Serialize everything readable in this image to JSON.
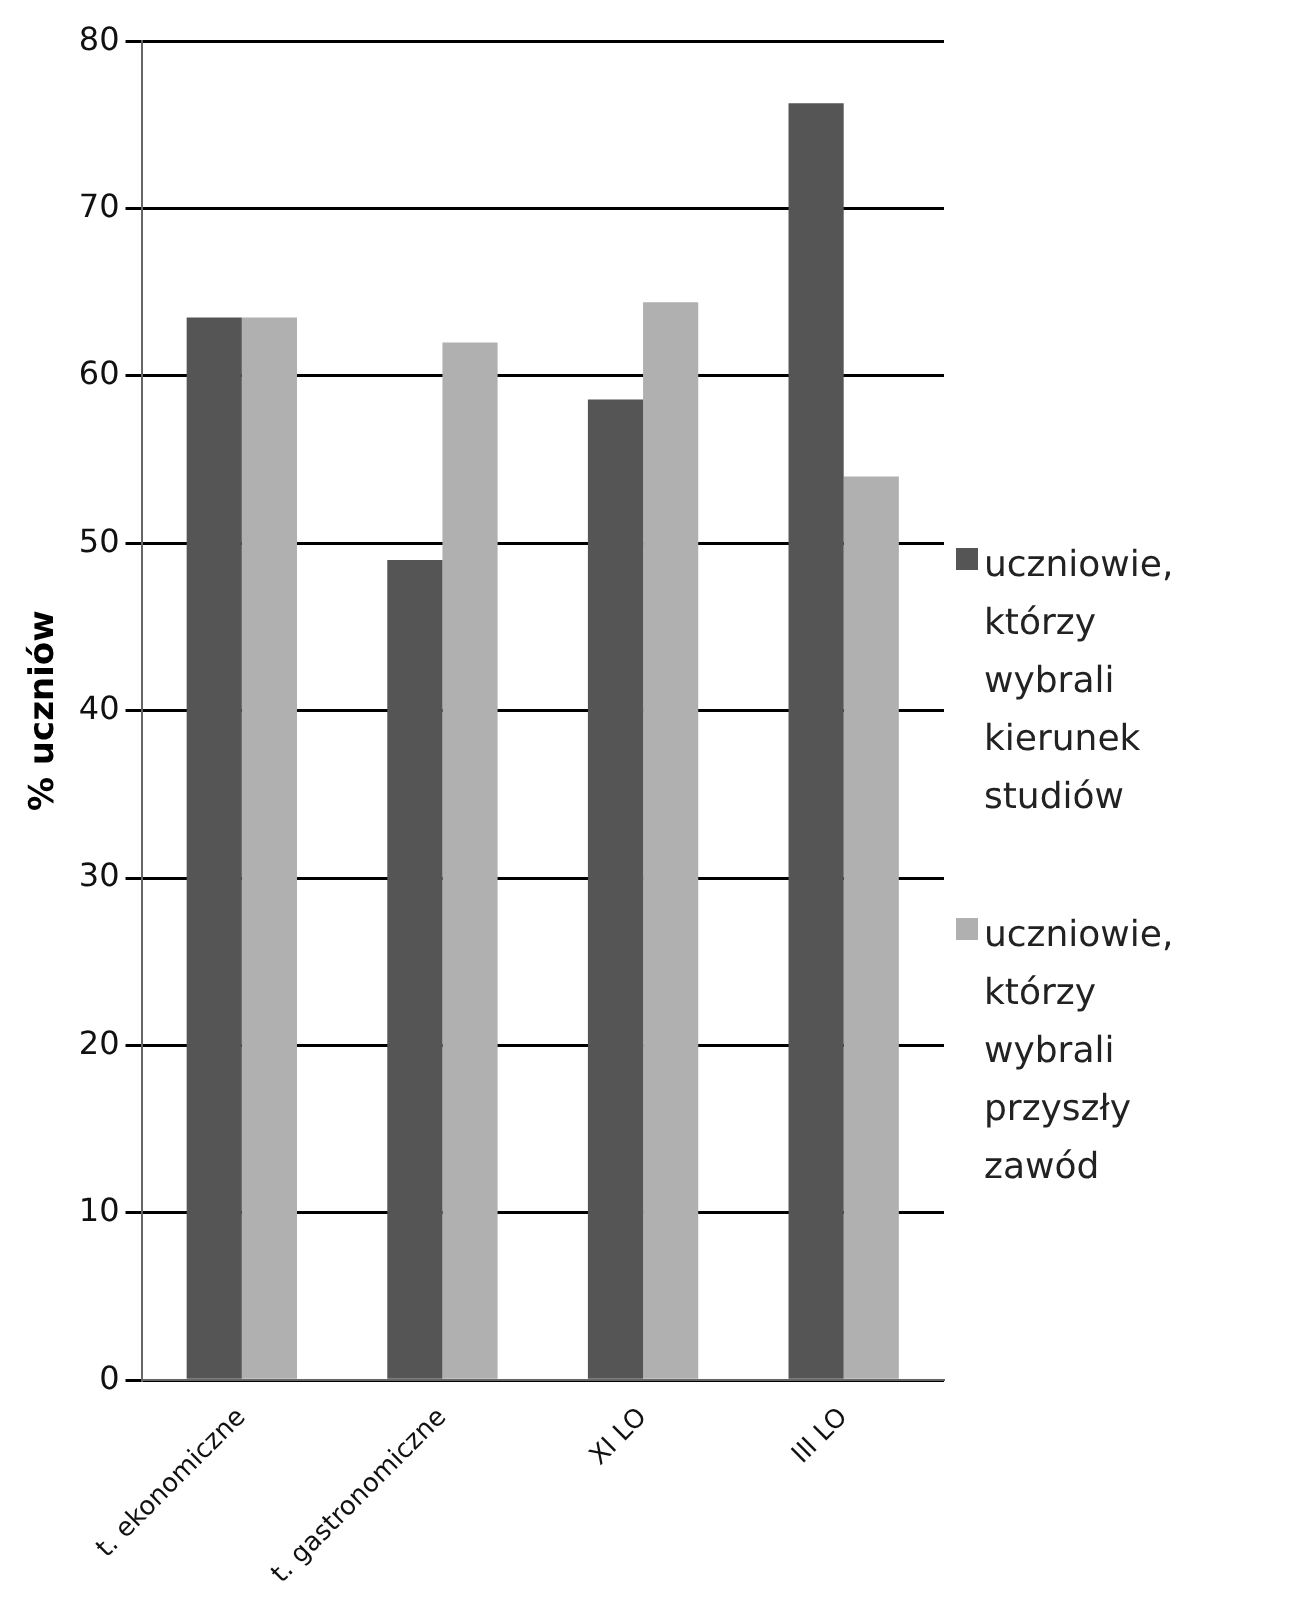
{
  "chart_data": {
    "type": "bar",
    "ylabel": "% uczniów",
    "categories": [
      "t. ekonomiczne",
      "t. gastronomiczne",
      "XI LO",
      "III LO"
    ],
    "series": [
      {
        "name": "uczniowie, którzy wybrali kierunek studiów",
        "color": "#555555",
        "values": [
          63.5,
          49,
          58.6,
          76.3
        ]
      },
      {
        "name": "uczniowie, którzy wybrali przyszły zawód",
        "color": "#b0b0b0",
        "values": [
          63.5,
          62,
          64.4,
          54
        ]
      }
    ],
    "ylim": [
      0,
      80
    ],
    "yticks": [
      0,
      10,
      20,
      30,
      40,
      50,
      60,
      70,
      80
    ],
    "grid": "y",
    "legend": "right"
  }
}
